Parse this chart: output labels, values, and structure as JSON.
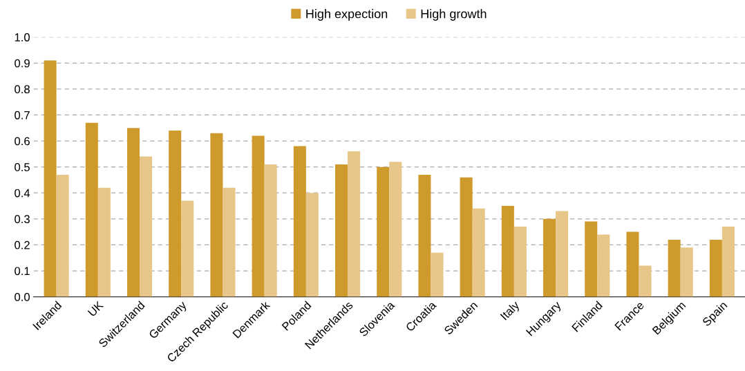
{
  "chart_data": {
    "type": "bar",
    "categories": [
      "Ireland",
      "UK",
      "Switzerland",
      "Germany",
      "Czech Republic",
      "Denmark",
      "Poland",
      "Netherlands",
      "Slovenia",
      "Croatia",
      "Sweden",
      "Italy",
      "Hungary",
      "Finland",
      "France",
      "Belgium",
      "Spain"
    ],
    "series": [
      {
        "name": "High expection",
        "color": "#cf9a2c",
        "values": [
          0.91,
          0.67,
          0.65,
          0.64,
          0.63,
          0.62,
          0.58,
          0.51,
          0.5,
          0.47,
          0.46,
          0.35,
          0.3,
          0.29,
          0.25,
          0.22,
          0.22
        ]
      },
      {
        "name": "High growth",
        "color": "#e8c68a",
        "values": [
          0.47,
          0.42,
          0.54,
          0.37,
          0.42,
          0.51,
          0.4,
          0.56,
          0.52,
          0.17,
          0.34,
          0.27,
          0.33,
          0.24,
          0.12,
          0.19,
          0.27
        ]
      }
    ],
    "ylim": [
      0,
      1.0
    ],
    "yticks": [
      {
        "value": 0,
        "label": "0.0"
      },
      {
        "value": 0.1,
        "label": "0.1"
      },
      {
        "value": 0.2,
        "label": "0.2"
      },
      {
        "value": 0.3,
        "label": "0.3"
      },
      {
        "value": 0.4,
        "label": "0.4"
      },
      {
        "value": 0.5,
        "label": "0.5"
      },
      {
        "value": 0.6,
        "label": "0.6"
      },
      {
        "value": 0.7,
        "label": "0.7"
      },
      {
        "value": 0.8,
        "label": "0.8"
      },
      {
        "value": 0.9,
        "label": "0.9"
      },
      {
        "value": 1.0,
        "label": "1.0"
      }
    ],
    "grid": "y",
    "legend": "top"
  }
}
